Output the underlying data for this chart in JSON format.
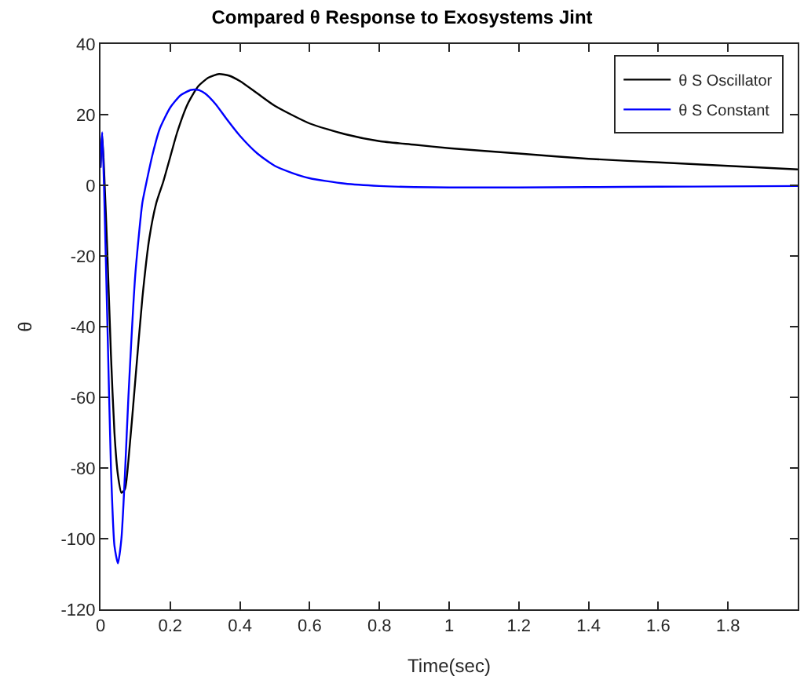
{
  "chart_data": {
    "type": "line",
    "title": "Compared θ Response to Exosystems Jint",
    "xlabel": "Time(sec)",
    "ylabel": "θ",
    "xlim": [
      0,
      2
    ],
    "xticks": [
      0,
      0.2,
      0.4,
      0.6,
      0.8,
      1,
      1.2,
      1.4,
      1.6,
      1.8
    ],
    "ylim": [
      -120,
      40
    ],
    "yticks": [
      -120,
      -100,
      -80,
      -60,
      -40,
      -20,
      0,
      20,
      40
    ],
    "legend": "top right",
    "series": [
      {
        "name": "θ S Oscillator",
        "color": "#000000",
        "x": [
          0,
          0.005,
          0.01,
          0.02,
          0.03,
          0.04,
          0.05,
          0.06,
          0.07,
          0.08,
          0.1,
          0.12,
          0.14,
          0.16,
          0.18,
          0.2,
          0.22,
          0.25,
          0.28,
          0.31,
          0.34,
          0.37,
          0.4,
          0.45,
          0.5,
          0.6,
          0.7,
          0.8,
          0.9,
          1.0,
          1.2,
          1.4,
          1.6,
          1.8,
          2.0
        ],
        "values": [
          5,
          14,
          5,
          -20,
          -48,
          -70,
          -82,
          -87,
          -86,
          -78,
          -55,
          -32,
          -15,
          -5,
          1,
          8,
          15,
          23,
          28,
          30.5,
          31.5,
          31,
          29.5,
          26,
          22.5,
          17.5,
          14.5,
          12.5,
          11.5,
          10.5,
          9,
          7.5,
          6.5,
          5.5,
          4.5
        ]
      },
      {
        "name": "θ S Constant",
        "color": "#0000ff",
        "x": [
          0,
          0.005,
          0.01,
          0.02,
          0.03,
          0.04,
          0.05,
          0.06,
          0.07,
          0.08,
          0.1,
          0.12,
          0.13,
          0.15,
          0.17,
          0.2,
          0.23,
          0.26,
          0.28,
          0.3,
          0.33,
          0.36,
          0.4,
          0.45,
          0.5,
          0.55,
          0.6,
          0.7,
          0.8,
          0.9,
          1.0,
          1.2,
          1.4,
          1.6,
          1.8,
          2.0
        ],
        "values": [
          5,
          15,
          0,
          -40,
          -80,
          -102,
          -107,
          -100,
          -82,
          -60,
          -25,
          -5,
          0,
          9,
          16,
          22,
          25.5,
          27,
          27,
          26,
          23,
          19,
          14,
          9,
          5.5,
          3.5,
          2,
          0.5,
          -0.2,
          -0.5,
          -0.6,
          -0.6,
          -0.5,
          -0.4,
          -0.3,
          -0.2
        ]
      }
    ]
  }
}
